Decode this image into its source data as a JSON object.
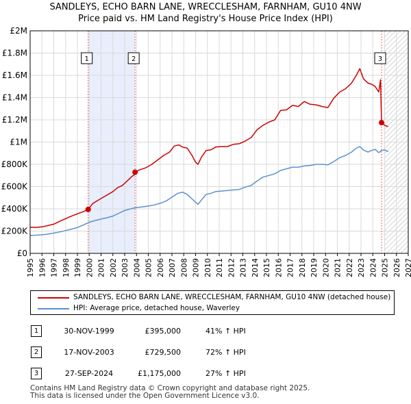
{
  "title_line1": "SANDLEYS, ECHO BARN LANE, WRECCLESHAM, FARNHAM, GU10 4NW",
  "title_line2": "Price paid vs. HM Land Registry's House Price Index (HPI)",
  "chart_data": {
    "type": "line",
    "ylim": [
      0,
      2000000
    ],
    "xlim": [
      1995.0,
      2027.0
    ],
    "y_ticks": [
      0,
      200000,
      400000,
      600000,
      800000,
      1000000,
      1200000,
      1400000,
      1600000,
      1800000,
      2000000
    ],
    "y_tick_labels": [
      "£0",
      "£200K",
      "£400K",
      "£600K",
      "£800K",
      "£1M",
      "£1.2M",
      "£1.4M",
      "£1.6M",
      "£1.8M",
      "£2M"
    ],
    "x_ticks": [
      1995,
      1996,
      1997,
      1998,
      1999,
      2000,
      2001,
      2002,
      2003,
      2004,
      2005,
      2006,
      2007,
      2008,
      2009,
      2010,
      2011,
      2012,
      2013,
      2014,
      2015,
      2016,
      2017,
      2018,
      2019,
      2020,
      2021,
      2022,
      2023,
      2024,
      2025,
      2026,
      2027
    ],
    "shaded_region": [
      1999.91,
      2003.88
    ],
    "hatched_region_start": 2025.0,
    "series": [
      {
        "name": "SANDLEYS, ECHO BARN LANE, WRECCLESHAM, FARNHAM, GU10 4NW (detached house)",
        "color": "#cc0000",
        "x": [
          1995.0,
          1995.5,
          1996.0,
          1996.5,
          1997.0,
          1997.5,
          1998.0,
          1998.5,
          1999.0,
          1999.5,
          1999.91,
          2000.3,
          2000.8,
          2001.2,
          2001.6,
          2002.0,
          2002.4,
          2002.8,
          2003.2,
          2003.6,
          2003.87,
          2003.88,
          2004.3,
          2004.8,
          2005.3,
          2005.8,
          2006.3,
          2006.8,
          2007.2,
          2007.6,
          2007.9,
          2008.3,
          2008.7,
          2009.0,
          2009.2,
          2009.5,
          2009.9,
          2010.3,
          2010.7,
          2011.2,
          2011.7,
          2012.2,
          2012.7,
          2013.2,
          2013.7,
          2014.2,
          2014.7,
          2015.2,
          2015.7,
          2016.2,
          2016.7,
          2017.2,
          2017.7,
          2018.2,
          2018.7,
          2019.2,
          2019.7,
          2020.2,
          2020.7,
          2021.2,
          2021.7,
          2022.2,
          2022.6,
          2022.9,
          2023.2,
          2023.6,
          2023.9,
          2024.2,
          2024.5,
          2024.65,
          2024.74,
          2025.0,
          2025.3
        ],
        "values": [
          235000,
          233000,
          238000,
          250000,
          262000,
          288000,
          312000,
          335000,
          355000,
          375000,
          395000,
          448000,
          480000,
          505000,
          530000,
          555000,
          590000,
          610000,
          650000,
          690000,
          710000,
          729500,
          752000,
          770000,
          800000,
          840000,
          880000,
          910000,
          965000,
          975000,
          955000,
          945000,
          880000,
          820000,
          800000,
          865000,
          925000,
          930000,
          955000,
          960000,
          960000,
          980000,
          985000,
          1010000,
          1040000,
          1110000,
          1150000,
          1180000,
          1200000,
          1285000,
          1290000,
          1330000,
          1320000,
          1365000,
          1340000,
          1335000,
          1320000,
          1310000,
          1395000,
          1450000,
          1480000,
          1530000,
          1600000,
          1660000,
          1570000,
          1530000,
          1520000,
          1500000,
          1450000,
          1560000,
          1175000,
          1150000,
          1140000
        ]
      },
      {
        "name": "HPI: Average price, detached house, Waverley",
        "color": "#5b8fcf",
        "x": [
          1995.0,
          1995.5,
          1996.0,
          1996.5,
          1997.0,
          1997.5,
          1998.0,
          1998.5,
          1999.0,
          1999.5,
          2000.0,
          2000.5,
          2001.0,
          2001.5,
          2002.0,
          2002.5,
          2003.0,
          2003.5,
          2004.0,
          2004.5,
          2005.0,
          2005.5,
          2006.0,
          2006.5,
          2007.0,
          2007.5,
          2007.9,
          2008.3,
          2008.7,
          2009.0,
          2009.2,
          2009.5,
          2009.9,
          2010.3,
          2010.7,
          2011.2,
          2011.7,
          2012.2,
          2012.7,
          2013.2,
          2013.7,
          2014.2,
          2014.7,
          2015.2,
          2015.7,
          2016.2,
          2016.7,
          2017.2,
          2017.7,
          2018.2,
          2018.7,
          2019.2,
          2019.7,
          2020.2,
          2020.7,
          2021.2,
          2021.7,
          2022.2,
          2022.6,
          2022.9,
          2023.2,
          2023.6,
          2023.9,
          2024.2,
          2024.5,
          2024.74,
          2025.0,
          2025.3
        ],
        "values": [
          162000,
          163000,
          167000,
          173000,
          182000,
          192000,
          205000,
          218000,
          232000,
          255000,
          280000,
          295000,
          308000,
          320000,
          335000,
          360000,
          385000,
          400000,
          412000,
          418000,
          425000,
          435000,
          450000,
          470000,
          505000,
          540000,
          550000,
          530000,
          490000,
          460000,
          440000,
          480000,
          530000,
          540000,
          555000,
          560000,
          565000,
          570000,
          575000,
          595000,
          610000,
          650000,
          685000,
          700000,
          715000,
          745000,
          760000,
          775000,
          775000,
          785000,
          790000,
          800000,
          800000,
          795000,
          825000,
          860000,
          880000,
          910000,
          945000,
          960000,
          930000,
          910000,
          925000,
          935000,
          905000,
          925000,
          930000,
          915000
        ]
      }
    ],
    "sales": [
      {
        "label": "1",
        "x": 1999.91,
        "value": 395000
      },
      {
        "label": "2",
        "x": 2003.88,
        "value": 729500
      },
      {
        "label": "3",
        "x": 2024.74,
        "value": 1175000
      }
    ]
  },
  "legend": {
    "entries": [
      {
        "label": "SANDLEYS, ECHO BARN LANE, WRECCLESHAM, FARNHAM, GU10 4NW (detached house)",
        "color": "#cc0000"
      },
      {
        "label": "HPI: Average price, detached house, Waverley",
        "color": "#5b8fcf"
      }
    ]
  },
  "transactions": [
    {
      "num": "1",
      "date": "30-NOV-1999",
      "price": "£395,000",
      "hpi": "41% ↑ HPI"
    },
    {
      "num": "2",
      "date": "17-NOV-2003",
      "price": "£729,500",
      "hpi": "72% ↑ HPI"
    },
    {
      "num": "3",
      "date": "27-SEP-2024",
      "price": "£1,175,000",
      "hpi": "27% ↑ HPI"
    }
  ],
  "footer": {
    "line1": "Contains HM Land Registry data © Crown copyright and database right 2025.",
    "line2": "This data is licensed under the Open Government Licence v3.0."
  }
}
